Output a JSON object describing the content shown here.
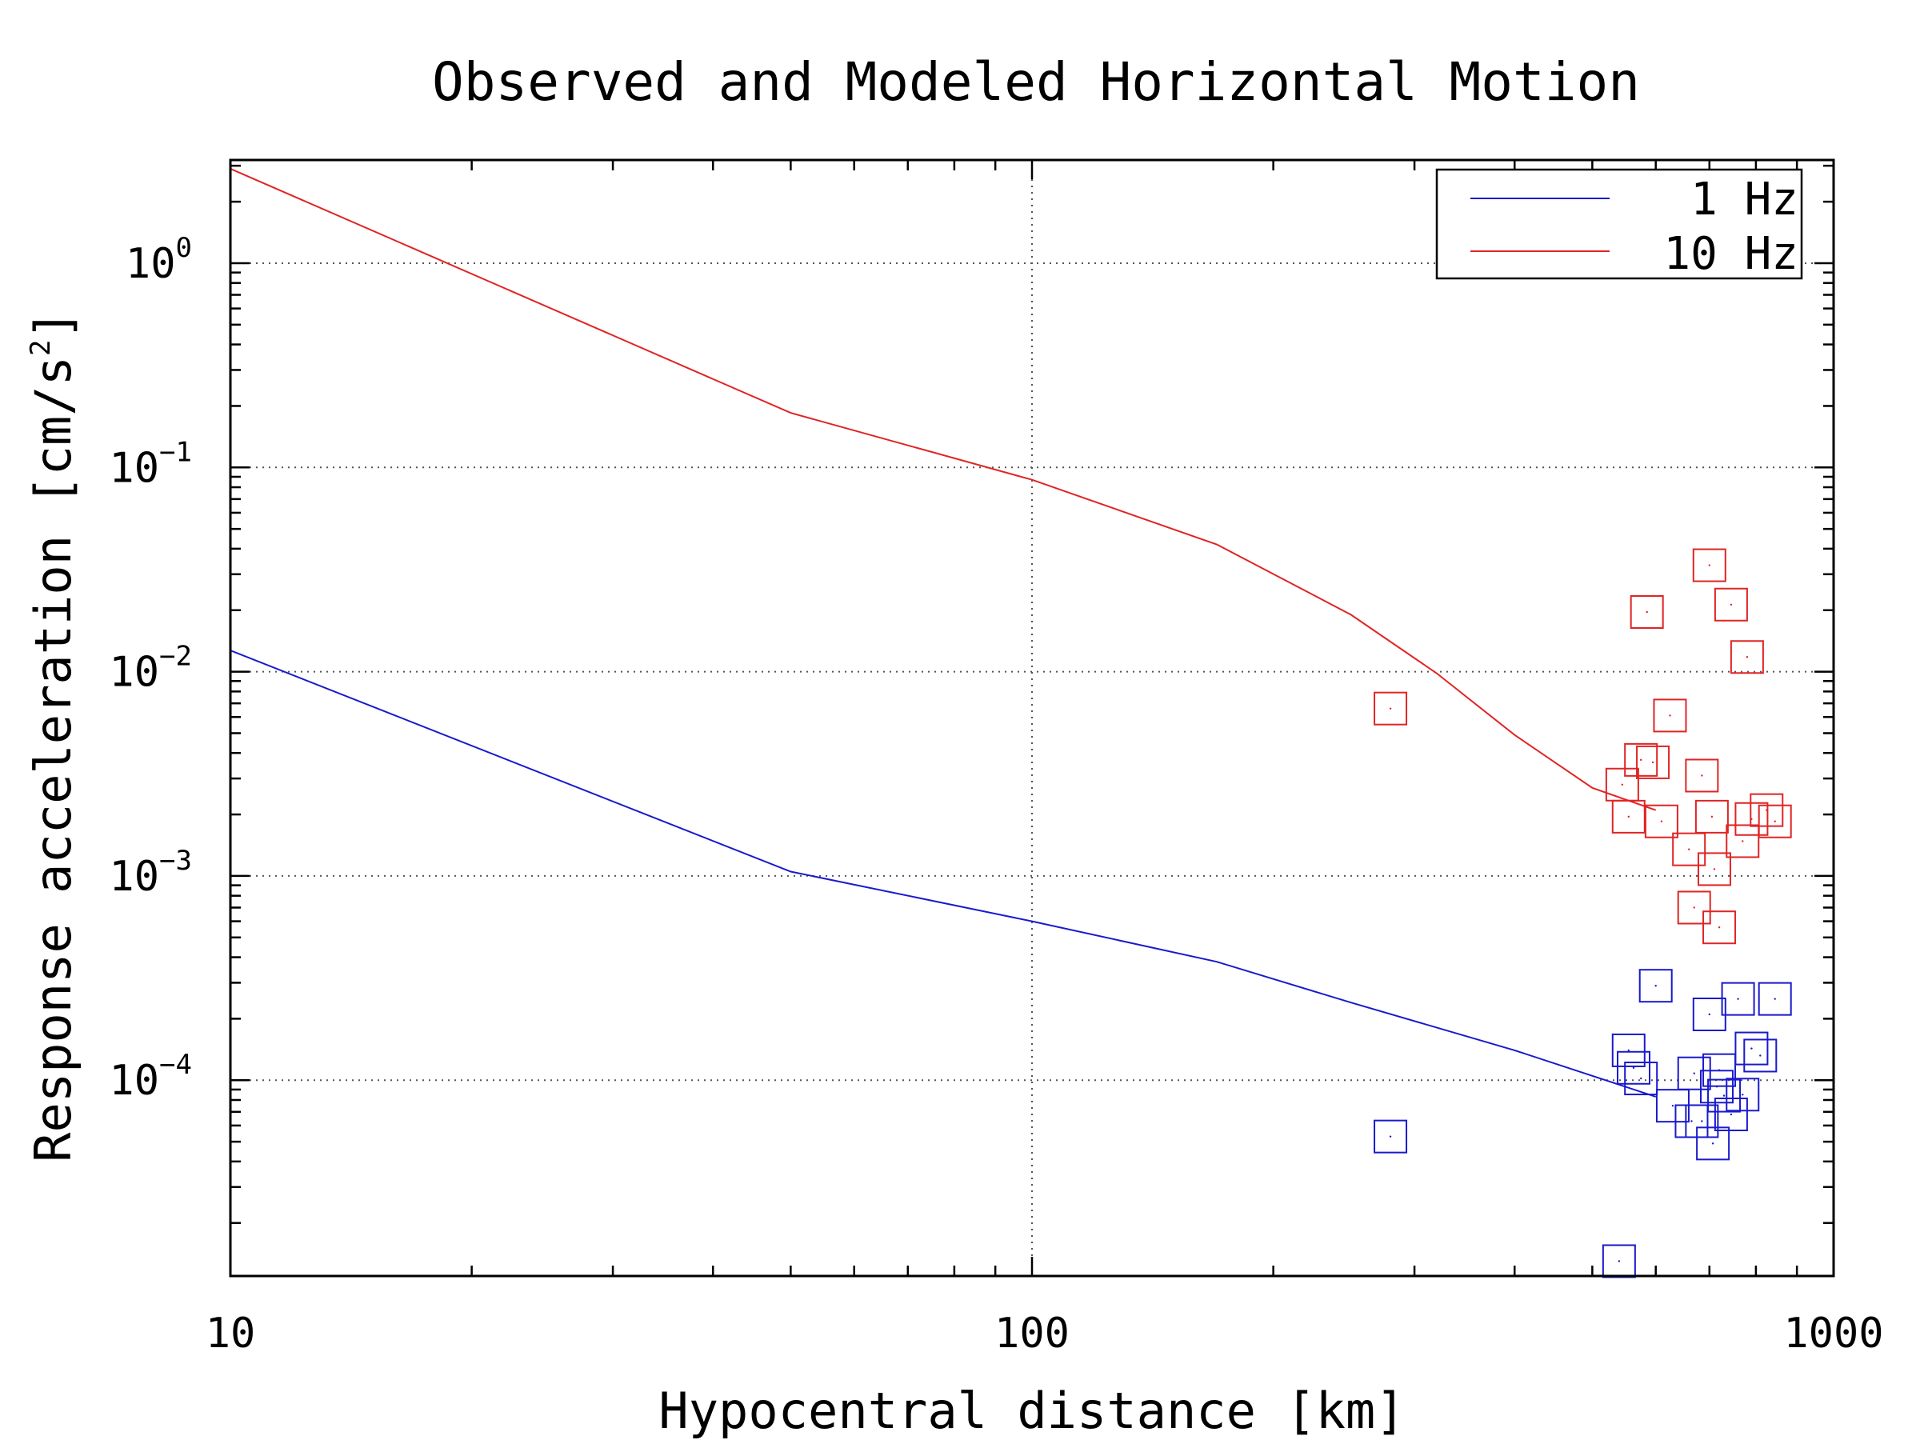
{
  "chart_data": {
    "type": "scatter",
    "title": "Observed and Modeled Horizontal Motion",
    "xlabel": "Hypocentral distance [km]",
    "ylabel": "Response acceleration [cm/s",
    "ylabel_sup": "2",
    "ylabel_close": "]",
    "x_scale": "log",
    "y_scale": "log",
    "xlim": [
      10,
      1000
    ],
    "ylim": [
      1.1e-05,
      3.2
    ],
    "grid": true,
    "legend_position": "top-right",
    "x_ticks": [
      {
        "value": 10,
        "label": "10"
      },
      {
        "value": 100,
        "label": "100"
      },
      {
        "value": 1000,
        "label": "1000"
      }
    ],
    "y_ticks": [
      {
        "value": 1,
        "base": "10",
        "exp": "0"
      },
      {
        "value": 0.1,
        "base": "10",
        "exp": "−1"
      },
      {
        "value": 0.01,
        "base": "10",
        "exp": "−2"
      },
      {
        "value": 0.001,
        "base": "10",
        "exp": "−3"
      },
      {
        "value": 0.0001,
        "base": "10",
        "exp": "−4"
      }
    ],
    "series": [
      {
        "name": "1 Hz",
        "color": "#1a1acc",
        "model_line": {
          "x": [
            10,
            50,
            100,
            170,
            250,
            400,
            600
          ],
          "y": [
            0.0127,
            0.00105,
            0.0006,
            0.00038,
            0.00024,
            0.00014,
            8.3e-05
          ]
        },
        "observed": {
          "x": [
            280,
            540,
            555,
            563,
            575,
            600,
            630,
            665,
            670,
            685,
            700,
            707,
            715,
            720,
            730,
            745,
            760,
            770,
            790,
            810,
            845
          ],
          "y": [
            5.3e-05,
            1.3e-05,
            0.00014,
            0.000115,
            0.000102,
            0.00029,
            7.5e-05,
            6.3e-05,
            0.000108,
            6.3e-05,
            0.00021,
            4.9e-05,
            9.3e-05,
            0.000112,
            8.4e-05,
            6.8e-05,
            0.00025,
            8.5e-05,
            0.000143,
            0.000132,
            0.00025
          ]
        }
      },
      {
        "name": "10 Hz",
        "color": "#e02424",
        "model_line": {
          "x": [
            10,
            50,
            100,
            170,
            250,
            320,
            400,
            500,
            600
          ],
          "y": [
            2.9,
            0.185,
            0.087,
            0.042,
            0.019,
            0.0098,
            0.0049,
            0.0027,
            0.0021
          ]
        },
        "observed": {
          "x": [
            280,
            545,
            555,
            575,
            585,
            595,
            610,
            625,
            660,
            670,
            685,
            700,
            705,
            710,
            720,
            745,
            770,
            780,
            790,
            825,
            845
          ],
          "y": [
            0.0066,
            0.0028,
            0.00195,
            0.0037,
            0.0196,
            0.0036,
            0.00185,
            0.0061,
            0.00135,
            0.0007,
            0.0031,
            0.0332,
            0.00195,
            0.00108,
            0.00056,
            0.0213,
            0.00148,
            0.0118,
            0.0019,
            0.0021,
            0.00185
          ]
        }
      }
    ]
  }
}
